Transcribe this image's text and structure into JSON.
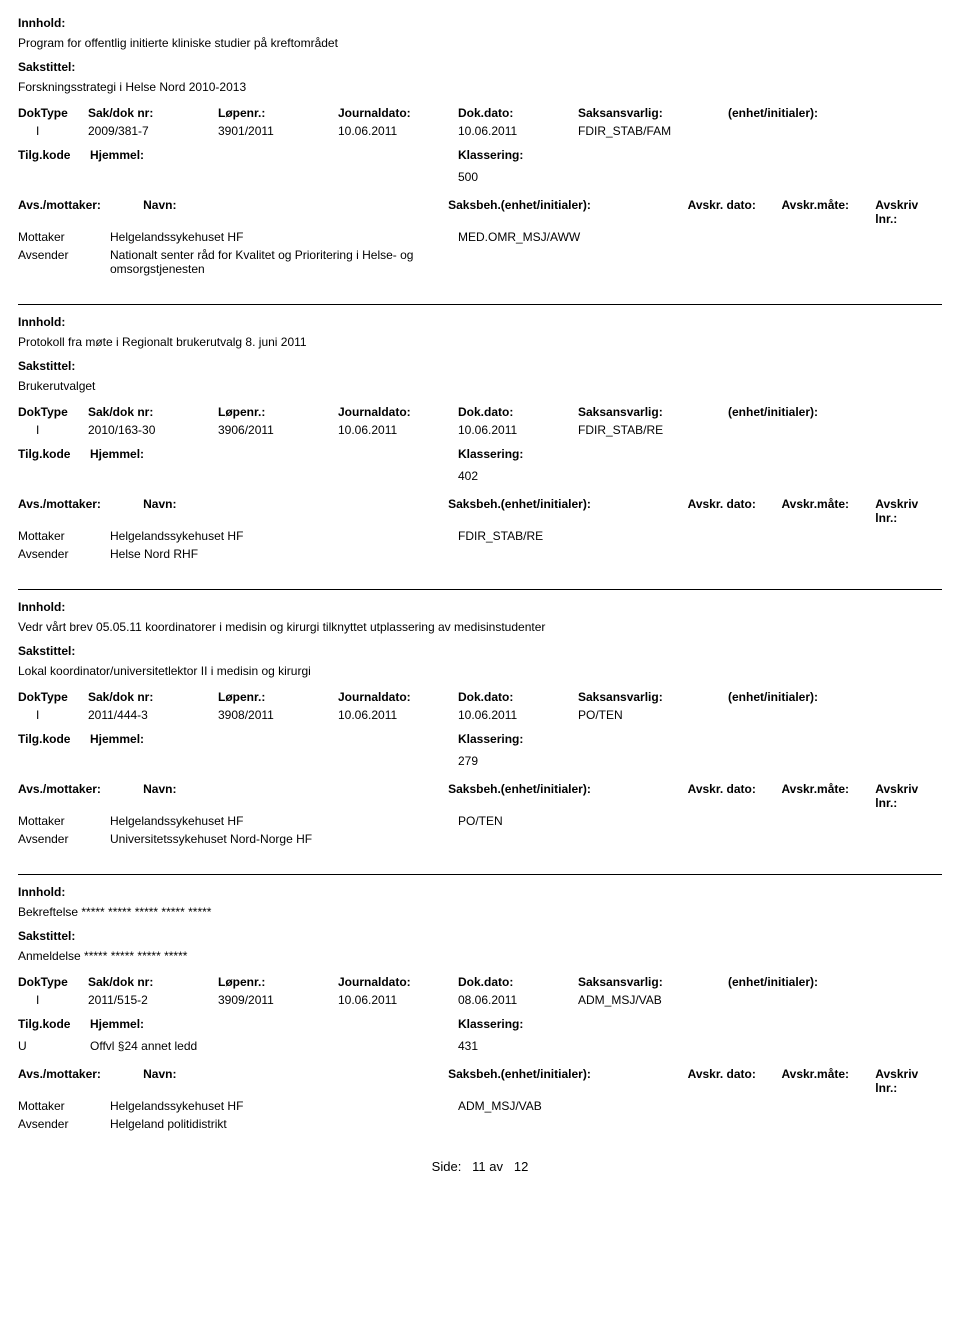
{
  "labels": {
    "innhold": "Innhold:",
    "sakstittel": "Sakstittel:",
    "doktype": "DokType",
    "sakdok": "Sak/dok nr:",
    "lopenr": "Løpenr.:",
    "jdato": "Journaldato:",
    "ddato": "Dok.dato:",
    "saksansv": "Saksansvarlig:",
    "enhet": "(enhet/initialer):",
    "tilgkode": "Tilg.kode",
    "hjemmel": "Hjemmel:",
    "klassering": "Klassering:",
    "avsmot": "Avs./mottaker:",
    "navn": "Navn:",
    "saksbeh": "Saksbeh.(enhet/initialer):",
    "avskrdato": "Avskr. dato:",
    "avskrmate": "Avskr.måte:",
    "avskrivlnr": "Avskriv lnr.:",
    "mottaker": "Mottaker",
    "avsender": "Avsender",
    "side": "Side:",
    "page": "11 av",
    "total": "12"
  },
  "entries": [
    {
      "innhold": "Program for offentlig initierte kliniske studier på kreftområdet",
      "sakstittel": "Forskningsstrategi i Helse Nord 2010-2013",
      "doktype": "I",
      "sakdok": "2009/381-7",
      "lopenr": "3901/2011",
      "jdato": "10.06.2011",
      "ddato": "10.06.2011",
      "saksansv": "FDIR_STAB/FAM",
      "tilgkode": "",
      "hjemmel": "",
      "klassering": "500",
      "parties": [
        {
          "role": "Mottaker",
          "navn": "Helgelandssykehuset HF",
          "saksbeh": "MED.OMR_MSJ/AWW"
        },
        {
          "role": "Avsender",
          "navn": "Nationalt senter råd for Kvalitet og Prioritering i Helse- og omsorgstjenesten",
          "saksbeh": ""
        }
      ]
    },
    {
      "innhold": "Protokoll fra møte i Regionalt brukerutvalg 8. juni 2011",
      "sakstittel": "Brukerutvalget",
      "doktype": "I",
      "sakdok": "2010/163-30",
      "lopenr": "3906/2011",
      "jdato": "10.06.2011",
      "ddato": "10.06.2011",
      "saksansv": "FDIR_STAB/RE",
      "tilgkode": "",
      "hjemmel": "",
      "klassering": "402",
      "parties": [
        {
          "role": "Mottaker",
          "navn": "Helgelandssykehuset HF",
          "saksbeh": "FDIR_STAB/RE"
        },
        {
          "role": "Avsender",
          "navn": "Helse Nord RHF",
          "saksbeh": ""
        }
      ]
    },
    {
      "innhold": "Vedr vårt brev 05.05.11 koordinatorer i medisin og kirurgi tilknyttet utplassering av medisinstudenter",
      "sakstittel": "Lokal koordinator/universitetlektor II i medisin og kirurgi",
      "doktype": "I",
      "sakdok": "2011/444-3",
      "lopenr": "3908/2011",
      "jdato": "10.06.2011",
      "ddato": "10.06.2011",
      "saksansv": "PO/TEN",
      "tilgkode": "",
      "hjemmel": "",
      "klassering": "279",
      "parties": [
        {
          "role": "Mottaker",
          "navn": "Helgelandssykehuset HF",
          "saksbeh": "PO/TEN"
        },
        {
          "role": "Avsender",
          "navn": "Universitetssykehuset Nord-Norge HF",
          "saksbeh": ""
        }
      ]
    },
    {
      "innhold": "Bekreftelse ***** ***** ***** ***** *****",
      "sakstittel": "Anmeldelse *****  ***** ***** *****",
      "doktype": "I",
      "sakdok": "2011/515-2",
      "lopenr": "3909/2011",
      "jdato": "10.06.2011",
      "ddato": "08.06.2011",
      "saksansv": "ADM_MSJ/VAB",
      "tilgkode": "U",
      "hjemmel": "Offvl §24 annet ledd",
      "klassering": "431",
      "parties": [
        {
          "role": "Mottaker",
          "navn": "Helgelandssykehuset HF",
          "saksbeh": "ADM_MSJ/VAB"
        },
        {
          "role": "Avsender",
          "navn": "Helgeland politidistrikt",
          "saksbeh": ""
        }
      ]
    }
  ]
}
